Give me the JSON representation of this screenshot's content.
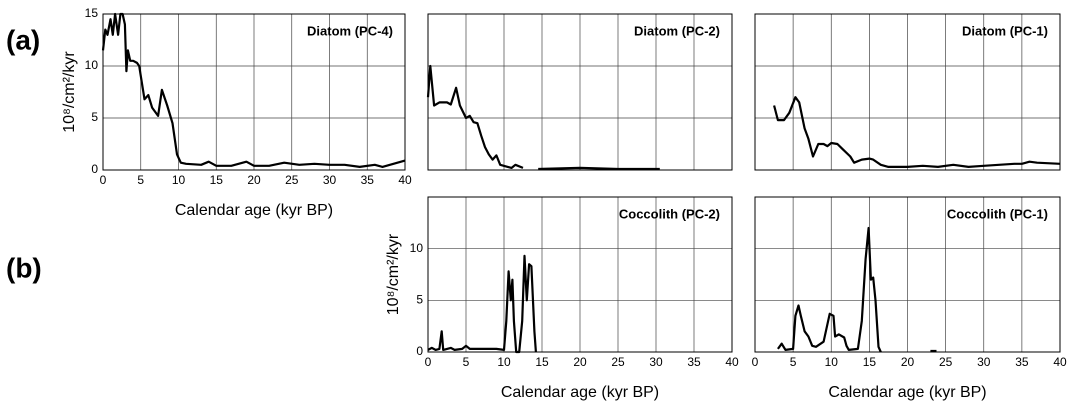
{
  "panel_labels": [
    "(a)",
    "(b)"
  ],
  "chart_data": [
    {
      "type": "line",
      "title": "Diatom (PC-4)",
      "xlabel": "Calendar age (kyr BP)",
      "ylabel": "10⁸/cm²/kyr",
      "xlim": [
        0,
        40
      ],
      "ylim": [
        0,
        15
      ],
      "xticks": [
        0,
        5,
        10,
        15,
        20,
        25,
        30,
        35,
        40
      ],
      "yticks": [
        0,
        5,
        10,
        15
      ],
      "grid": true,
      "color": "#000000",
      "x": [
        0,
        0.3,
        0.6,
        1,
        1.3,
        1.6,
        2,
        2.3,
        2.6,
        2.9,
        3.1,
        3.3,
        3.6,
        4,
        4.5,
        4.8,
        5.5,
        6,
        6.5,
        7.3,
        7.8,
        8.5,
        9.2,
        9.8,
        10.3,
        11,
        13,
        14,
        15,
        17,
        19,
        20,
        22,
        24,
        26,
        28,
        30,
        32,
        34,
        36,
        37,
        40
      ],
      "values": [
        11.5,
        13.5,
        13,
        14.5,
        13,
        15,
        13,
        15,
        15,
        14,
        9.5,
        11.5,
        10.5,
        10.5,
        10.3,
        10,
        6.8,
        7.2,
        6,
        5.2,
        7.7,
        6.2,
        4.5,
        1.5,
        0.7,
        0.6,
        0.5,
        0.8,
        0.4,
        0.4,
        0.8,
        0.4,
        0.4,
        0.7,
        0.5,
        0.6,
        0.5,
        0.5,
        0.3,
        0.5,
        0.3,
        0.9
      ]
    },
    {
      "type": "line",
      "title": "Diatom (PC-2)",
      "xlim": [
        0,
        40
      ],
      "ylim": [
        0,
        15
      ],
      "color": "#000000",
      "x": [
        0,
        0.3,
        0.8,
        1.5,
        2.5,
        3,
        3.7,
        4.2,
        5,
        5.5,
        6,
        6.5,
        7,
        7.5,
        8,
        8.5,
        9,
        9.5,
        10.5,
        11,
        11.5,
        12.5,
        13.5,
        14.5,
        20,
        25,
        30.5
      ],
      "values": [
        7,
        10,
        6.2,
        6.5,
        6.5,
        6.3,
        7.9,
        6.2,
        5,
        5.2,
        4.6,
        4.5,
        3.3,
        2.2,
        1.5,
        1,
        1.4,
        0.5,
        0.3,
        0.2,
        0.5,
        0.2,
        null,
        0.1,
        0.2,
        0.1,
        0.1
      ]
    },
    {
      "type": "line",
      "title": "Diatom (PC-1)",
      "xlim": [
        0,
        40
      ],
      "ylim": [
        0,
        15
      ],
      "color": "#000000",
      "x": [
        2.5,
        3,
        3.8,
        4.5,
        5.3,
        5.8,
        6.5,
        7,
        7.6,
        8.3,
        9,
        9.5,
        10,
        10.8,
        11.5,
        12.5,
        13,
        14,
        15,
        15.5,
        16.5,
        17.5,
        20,
        22,
        24,
        26,
        28,
        30,
        32,
        34,
        35,
        36,
        37,
        40
      ],
      "values": [
        6.2,
        4.8,
        4.8,
        5.5,
        7,
        6.5,
        4,
        3,
        1.3,
        2.5,
        2.5,
        2.3,
        2.6,
        2.5,
        2,
        1.3,
        0.7,
        1,
        1.1,
        1,
        0.5,
        0.3,
        0.3,
        0.4,
        0.3,
        0.5,
        0.3,
        0.4,
        0.5,
        0.6,
        0.6,
        0.8,
        0.7,
        0.6
      ]
    },
    {
      "type": "line",
      "title": "Coccolith (PC-2)",
      "xlabel": "Calendar age (kyr BP)",
      "ylabel": "10⁸/cm²/kyr",
      "xlim": [
        0,
        40
      ],
      "ylim": [
        0,
        15
      ],
      "xticks": [
        0,
        5,
        10,
        15,
        20,
        25,
        30,
        35,
        40
      ],
      "yticks": [
        0,
        5,
        10
      ],
      "grid": true,
      "color": "#000000",
      "x": [
        0,
        0.5,
        1,
        1.5,
        1.8,
        2,
        3,
        3.5,
        4.5,
        5,
        5.5,
        7,
        9,
        10,
        10.3,
        10.6,
        10.9,
        11.1,
        11.3,
        11.6,
        12,
        12.4,
        12.7,
        13,
        13.3,
        13.6,
        14,
        14.2
      ],
      "values": [
        0.2,
        0.4,
        0.2,
        0.3,
        2,
        0.2,
        0.4,
        0.2,
        0.3,
        0.6,
        0.3,
        0.3,
        0.3,
        0.2,
        3,
        7.8,
        5,
        7,
        3,
        0,
        0,
        3,
        9.3,
        5,
        8.5,
        8.3,
        2,
        0
      ]
    },
    {
      "type": "line",
      "title": "Coccolith (PC-1)",
      "xlabel": "Calendar age (kyr BP)",
      "xlim": [
        0,
        40
      ],
      "ylim": [
        0,
        15
      ],
      "xticks": [
        0,
        5,
        10,
        15,
        20,
        25,
        30,
        35,
        40
      ],
      "grid": true,
      "color": "#000000",
      "x": [
        3,
        3.5,
        4,
        5,
        5.3,
        5.7,
        6,
        6.5,
        7,
        7.5,
        8,
        9,
        9.8,
        10.3,
        10.5,
        11,
        11.7,
        12,
        12.3,
        13.5,
        14,
        14.5,
        14.9,
        15.2,
        15.5,
        15.8,
        16.2,
        16.5,
        20,
        23,
        23.8
      ],
      "values": [
        0.3,
        0.8,
        0.2,
        0.3,
        3.5,
        4.5,
        3.5,
        2,
        1.5,
        0.6,
        0.5,
        1,
        3.7,
        3.5,
        1.5,
        1.7,
        1.4,
        0.6,
        0.2,
        0.3,
        3,
        9,
        12,
        7,
        7.2,
        5,
        0.5,
        0,
        null,
        0.1,
        0.1
      ]
    }
  ]
}
